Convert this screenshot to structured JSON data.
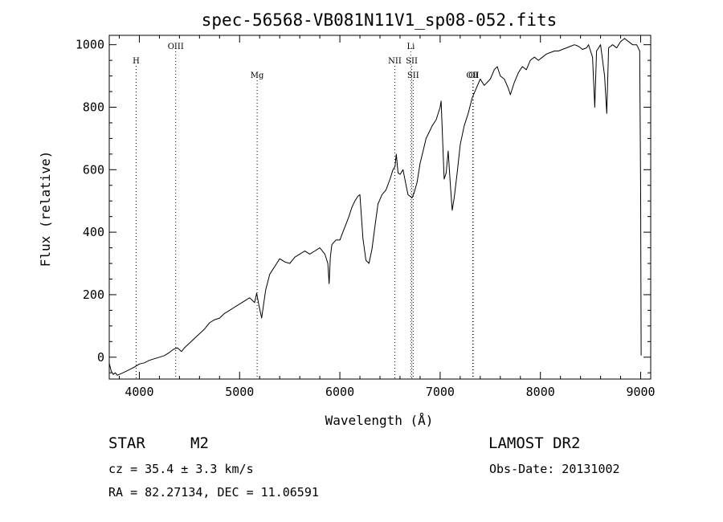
{
  "chart_data": {
    "type": "line",
    "title": "spec-56568-VB081N11V1_sp08-052.fits",
    "xlabel": "Wavelength (Å)",
    "ylabel": "Flux (relative)",
    "xlim": [
      3700,
      9100
    ],
    "ylim": [
      -70,
      1030
    ],
    "xticks": [
      4000,
      5000,
      6000,
      7000,
      8000,
      9000
    ],
    "yticks": [
      0,
      200,
      400,
      600,
      800,
      1000
    ],
    "grid": false,
    "series": [
      {
        "x": [
          3700,
          3720,
          3740,
          3760,
          3780,
          3800,
          3850,
          3900,
          3950,
          4000,
          4050,
          4100,
          4150,
          4200,
          4250,
          4300,
          4340,
          4380,
          4420,
          4450,
          4500,
          4550,
          4600,
          4650,
          4700,
          4750,
          4800,
          4850,
          4900,
          4950,
          5000,
          5050,
          5100,
          5150,
          5170,
          5190,
          5220,
          5260,
          5300,
          5330,
          5360,
          5400,
          5450,
          5500,
          5550,
          5600,
          5650,
          5700,
          5750,
          5800,
          5850,
          5880,
          5893,
          5905,
          5920,
          5960,
          6000,
          6030,
          6060,
          6090,
          6120,
          6150,
          6180,
          6200,
          6230,
          6260,
          6290,
          6320,
          6350,
          6380,
          6420,
          6460,
          6500,
          6530,
          6550,
          6563,
          6580,
          6600,
          6630,
          6660,
          6680,
          6700,
          6720,
          6740,
          6770,
          6800,
          6830,
          6860,
          6890,
          6920,
          6960,
          7000,
          7010,
          7040,
          7060,
          7080,
          7100,
          7120,
          7140,
          7170,
          7200,
          7240,
          7280,
          7320,
          7360,
          7400,
          7440,
          7470,
          7500,
          7540,
          7570,
          7600,
          7640,
          7680,
          7700,
          7740,
          7780,
          7820,
          7860,
          7900,
          7940,
          7980,
          8020,
          8060,
          8100,
          8140,
          8180,
          8220,
          8260,
          8300,
          8340,
          8380,
          8420,
          8460,
          8480,
          8500,
          8520,
          8542,
          8560,
          8580,
          8600,
          8640,
          8662,
          8680,
          8720,
          8760,
          8800,
          8840,
          8880,
          8920,
          8960,
          8990,
          9000,
          9005
        ],
        "y": [
          -20,
          -45,
          -55,
          -50,
          -58,
          -55,
          -48,
          -40,
          -32,
          -22,
          -18,
          -10,
          -5,
          0,
          5,
          15,
          25,
          30,
          18,
          30,
          45,
          60,
          75,
          90,
          110,
          120,
          125,
          140,
          150,
          160,
          170,
          180,
          190,
          175,
          205,
          170,
          125,
          215,
          265,
          280,
          295,
          315,
          305,
          300,
          320,
          330,
          340,
          330,
          340,
          350,
          330,
          300,
          235,
          320,
          360,
          375,
          375,
          400,
          425,
          450,
          480,
          500,
          515,
          520,
          380,
          310,
          300,
          345,
          420,
          490,
          520,
          535,
          570,
          600,
          610,
          650,
          590,
          585,
          600,
          550,
          520,
          515,
          510,
          525,
          560,
          620,
          660,
          700,
          720,
          740,
          760,
          800,
          820,
          570,
          590,
          660,
          560,
          470,
          510,
          590,
          680,
          740,
          780,
          830,
          860,
          890,
          870,
          880,
          890,
          920,
          930,
          900,
          890,
          860,
          840,
          880,
          910,
          930,
          920,
          950,
          960,
          950,
          960,
          970,
          975,
          980,
          980,
          985,
          990,
          995,
          1000,
          995,
          985,
          990,
          1000,
          980,
          960,
          800,
          980,
          990,
          1000,
          900,
          780,
          990,
          1000,
          990,
          1010,
          1020,
          1010,
          1000,
          1000,
          980,
          520,
          5
        ]
      }
    ],
    "annotations": [
      {
        "label": "H",
        "wavelength": 3968,
        "level": 1
      },
      {
        "label": "OIII",
        "wavelength": 4363,
        "level": 0
      },
      {
        "label": "Mg",
        "wavelength": 5175,
        "level": 2
      },
      {
        "label": "NII",
        "wavelength": 6548,
        "level": 1
      },
      {
        "label": "Li",
        "wavelength": 6708,
        "level": 0
      },
      {
        "label": "SII",
        "wavelength": 6717,
        "level": 1
      },
      {
        "label": "SII",
        "wavelength": 6731,
        "level": 2
      },
      {
        "label": "OII",
        "wavelength": 7325,
        "level": 2
      },
      {
        "label": "OI",
        "wavelength": 7330,
        "level": 2
      }
    ],
    "line_colors": {
      "default": "#000000",
      "Li": "#e00000"
    }
  },
  "info": {
    "class_label": "STAR",
    "subclass": "M2",
    "survey": "LAMOST DR2",
    "redshift": "cz = 35.4 ± 3.3 km/s",
    "obs_date": "Obs-Date: 20131002",
    "coords": "RA =  82.27134, DEC =  11.06591"
  }
}
